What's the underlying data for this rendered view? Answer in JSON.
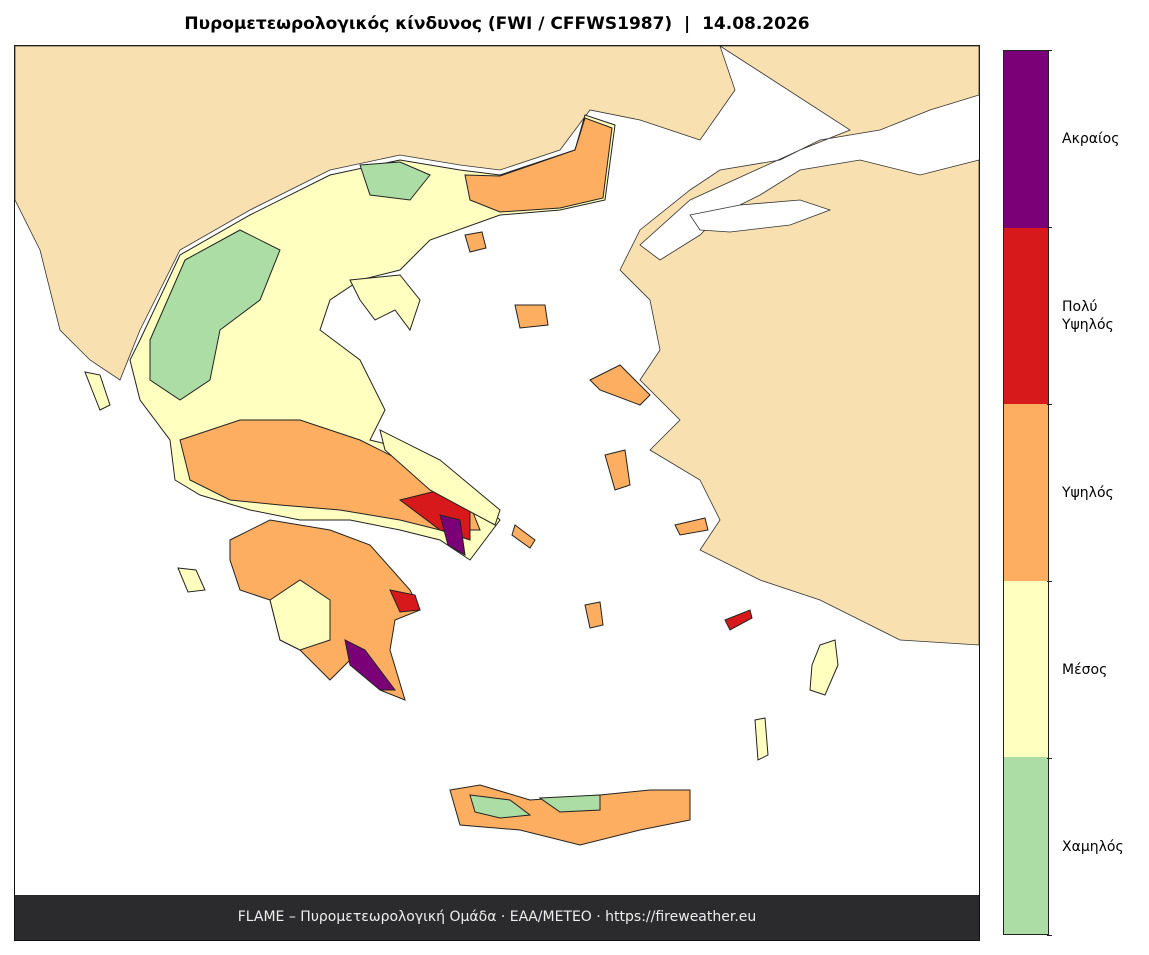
{
  "title": "Πυρομετεωρολογικός κίνδυνος (FWI / CFFWS1987)  |  14.08.2026",
  "footer": "FLAME – Πυρομετεωρολογική Ομάδα · ΕΑΑ/METEO · https://fireweather.eu",
  "colorbar": {
    "classes": [
      {
        "label": "Χαμηλός",
        "color": "#abdda4"
      },
      {
        "label": "Μέσος",
        "color": "#ffffbf"
      },
      {
        "label": "Υψηλός",
        "color": "#fdae61"
      },
      {
        "label": "Πολύ Υψηλός",
        "color": "#d7191c"
      },
      {
        "label": "Ακραίος",
        "color": "#7b0077"
      }
    ]
  }
}
